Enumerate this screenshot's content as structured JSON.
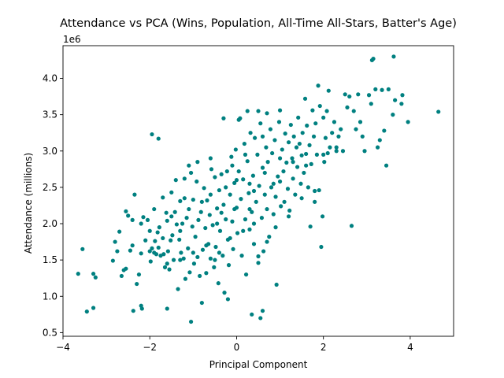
{
  "chart_data": {
    "type": "scatter",
    "title": "Attendance vs PCA (Wins, Population, All-Time All-Stars, Batter's Age)",
    "xlabel": "Principal Component",
    "ylabel": "Attendance (millions)",
    "offset_label": "1e6",
    "xlim": [
      -4.0,
      5.0
    ],
    "ylim": [
      0.45,
      4.45
    ],
    "x_ticks": [
      -4,
      -2,
      0,
      2,
      4
    ],
    "x_tick_labels": [
      "−4",
      "−2",
      "0",
      "2",
      "4"
    ],
    "y_ticks": [
      0.5,
      1.0,
      1.5,
      2.0,
      2.5,
      3.0,
      3.5,
      4.0
    ],
    "y_tick_labels": [
      "0.5",
      "1.0",
      "1.5",
      "2.0",
      "2.5",
      "3.0",
      "3.5",
      "4.0"
    ],
    "grid": false,
    "marker_color": "#008080",
    "points": [
      [
        -3.65,
        1.31
      ],
      [
        -3.55,
        1.65
      ],
      [
        -3.45,
        0.79
      ],
      [
        -3.3,
        0.84
      ],
      [
        -3.3,
        1.31
      ],
      [
        -3.25,
        1.26
      ],
      [
        -2.85,
        1.49
      ],
      [
        -2.75,
        1.62
      ],
      [
        -2.8,
        1.75
      ],
      [
        -2.7,
        1.89
      ],
      [
        -2.65,
        1.28
      ],
      [
        -2.6,
        1.36
      ],
      [
        -2.55,
        1.38
      ],
      [
        -2.55,
        2.17
      ],
      [
        -2.5,
        2.11
      ],
      [
        -2.45,
        1.63
      ],
      [
        -2.4,
        2.05
      ],
      [
        -2.38,
        0.8
      ],
      [
        -2.35,
        2.4
      ],
      [
        -2.3,
        1.17
      ],
      [
        -2.25,
        1.3
      ],
      [
        -2.2,
        1.59
      ],
      [
        -2.18,
        0.83
      ],
      [
        -2.2,
        0.87
      ],
      [
        -2.15,
        2.09
      ],
      [
        -2.1,
        1.77
      ],
      [
        -2.05,
        2.05
      ],
      [
        -2.0,
        1.62
      ],
      [
        -1.98,
        1.48
      ],
      [
        -1.95,
        1.66
      ],
      [
        -1.9,
        2.2
      ],
      [
        -1.88,
        1.76
      ],
      [
        -1.85,
        1.58
      ],
      [
        -1.82,
        1.88
      ],
      [
        -1.8,
        1.67
      ],
      [
        -1.78,
        1.95
      ],
      [
        -1.75,
        1.56
      ],
      [
        -1.7,
        2.36
      ],
      [
        -1.68,
        1.58
      ],
      [
        -1.65,
        1.4
      ],
      [
        -1.62,
        2.15
      ],
      [
        -1.6,
        2.04
      ],
      [
        -1.58,
        1.62
      ],
      [
        -1.55,
        1.37
      ],
      [
        -1.52,
        1.77
      ],
      [
        -1.5,
        2.43
      ],
      [
        -1.48,
        1.84
      ],
      [
        -1.45,
        1.5
      ],
      [
        -1.42,
        2.16
      ],
      [
        -1.4,
        2.6
      ],
      [
        -1.38,
        1.99
      ],
      [
        -1.35,
        1.1
      ],
      [
        -1.32,
        1.78
      ],
      [
        -1.3,
        2.31
      ],
      [
        -1.28,
        1.6
      ],
      [
        -1.25,
        2.0
      ],
      [
        -1.22,
        1.52
      ],
      [
        -1.2,
        2.62
      ],
      [
        -1.18,
        1.24
      ],
      [
        -1.15,
        2.08
      ],
      [
        -1.12,
        1.66
      ],
      [
        -1.1,
        2.8
      ],
      [
        -1.08,
        1.33
      ],
      [
        -1.05,
        2.7
      ],
      [
        -1.02,
        1.96
      ],
      [
        -1.0,
        2.33
      ],
      [
        -0.98,
        1.45
      ],
      [
        -0.95,
        1.82
      ],
      [
        -0.92,
        2.58
      ],
      [
        -0.9,
        1.54
      ],
      [
        -0.88,
        2.05
      ],
      [
        -0.85,
        1.28
      ],
      [
        -0.82,
        2.16
      ],
      [
        -0.8,
        0.91
      ],
      [
        -0.78,
        1.64
      ],
      [
        -0.75,
        2.49
      ],
      [
        -0.72,
        1.94
      ],
      [
        -0.7,
        1.32
      ],
      [
        -0.68,
        2.32
      ],
      [
        -0.65,
        1.72
      ],
      [
        -0.62,
        2.12
      ],
      [
        -0.6,
        1.52
      ],
      [
        -0.58,
        2.75
      ],
      [
        -0.55,
        1.98
      ],
      [
        -0.52,
        1.4
      ],
      [
        -0.5,
        2.64
      ],
      [
        -0.48,
        1.68
      ],
      [
        -0.45,
        2.21
      ],
      [
        -0.42,
        1.18
      ],
      [
        -0.4,
        2.46
      ],
      [
        -0.38,
        1.9
      ],
      [
        -0.35,
        2.68
      ],
      [
        -0.32,
        1.56
      ],
      [
        -0.3,
        2.26
      ],
      [
        -0.28,
        1.05
      ],
      [
        -0.25,
        2.06
      ],
      [
        -0.22,
        2.72
      ],
      [
        -0.2,
        1.78
      ],
      [
        -0.18,
        1.43
      ],
      [
        -0.15,
        2.4
      ],
      [
        -0.12,
        2.92
      ],
      [
        -0.1,
        2.03
      ],
      [
        -0.08,
        1.65
      ],
      [
        -0.05,
        2.56
      ],
      [
        -0.02,
        3.02
      ],
      [
        0.0,
        2.22
      ],
      [
        0.02,
        1.87
      ],
      [
        0.05,
        2.72
      ],
      [
        0.08,
        3.45
      ],
      [
        0.1,
        2.34
      ],
      [
        0.12,
        1.56
      ],
      [
        0.15,
        2.61
      ],
      [
        0.18,
        3.1
      ],
      [
        0.2,
        2.06
      ],
      [
        0.22,
        1.3
      ],
      [
        0.25,
        2.86
      ],
      [
        0.28,
        2.42
      ],
      [
        0.3,
        1.92
      ],
      [
        0.32,
        3.25
      ],
      [
        0.35,
        2.16
      ],
      [
        0.38,
        2.66
      ],
      [
        0.4,
        1.72
      ],
      [
        0.42,
        3.18
      ],
      [
        0.45,
        2.3
      ],
      [
        0.48,
        2.95
      ],
      [
        0.5,
        1.46
      ],
      [
        0.52,
        2.52
      ],
      [
        0.55,
        3.38
      ],
      [
        0.58,
        2.08
      ],
      [
        0.6,
        2.77
      ],
      [
        0.62,
        1.62
      ],
      [
        0.65,
        2.4
      ],
      [
        0.68,
        3.05
      ],
      [
        0.7,
        2.2
      ],
      [
        0.72,
        2.85
      ],
      [
        0.75,
        1.82
      ],
      [
        0.78,
        3.3
      ],
      [
        0.8,
        2.5
      ],
      [
        0.82,
        2.97
      ],
      [
        0.85,
        2.13
      ],
      [
        0.88,
        3.15
      ],
      [
        0.9,
        2.37
      ],
      [
        0.92,
        1.16
      ],
      [
        0.95,
        2.65
      ],
      [
        0.98,
        3.4
      ],
      [
        1.0,
        2.58
      ],
      [
        1.02,
        2.24
      ],
      [
        1.05,
        3.02
      ],
      [
        1.08,
        2.72
      ],
      [
        1.1,
        2.3
      ],
      [
        1.12,
        3.24
      ],
      [
        1.15,
        2.84
      ],
      [
        1.18,
        2.48
      ],
      [
        1.2,
        3.12
      ],
      [
        1.22,
        2.18
      ],
      [
        1.25,
        3.36
      ],
      [
        1.28,
        2.9
      ],
      [
        1.3,
        2.62
      ],
      [
        1.32,
        3.2
      ],
      [
        1.35,
        2.4
      ],
      [
        1.38,
        3.05
      ],
      [
        1.4,
        2.78
      ],
      [
        1.42,
        3.46
      ],
      [
        1.45,
        3.1
      ],
      [
        1.48,
        2.55
      ],
      [
        1.5,
        2.94
      ],
      [
        1.52,
        3.25
      ],
      [
        1.55,
        2.7
      ],
      [
        1.58,
        3.72
      ],
      [
        1.6,
        2.96
      ],
      [
        1.62,
        3.35
      ],
      [
        1.65,
        2.5
      ],
      [
        1.68,
        3.08
      ],
      [
        1.7,
        1.96
      ],
      [
        1.72,
        2.82
      ],
      [
        1.75,
        3.56
      ],
      [
        1.78,
        3.2
      ],
      [
        1.8,
        2.3
      ],
      [
        1.82,
        3.38
      ],
      [
        1.85,
        2.95
      ],
      [
        1.88,
        3.9
      ],
      [
        1.9,
        2.46
      ],
      [
        1.92,
        3.62
      ],
      [
        1.95,
        1.68
      ],
      [
        1.98,
        2.1
      ],
      [
        2.0,
        3.46
      ],
      [
        2.02,
        2.85
      ],
      [
        2.05,
        3.18
      ],
      [
        2.08,
        3.55
      ],
      [
        2.1,
        2.97
      ],
      [
        2.12,
        3.83
      ],
      [
        2.15,
        3.05
      ],
      [
        2.2,
        3.25
      ],
      [
        2.25,
        3.4
      ],
      [
        2.3,
        3.05
      ],
      [
        2.35,
        3.2
      ],
      [
        2.4,
        3.3
      ],
      [
        2.45,
        3.0
      ],
      [
        2.5,
        3.78
      ],
      [
        2.55,
        3.6
      ],
      [
        2.6,
        3.75
      ],
      [
        2.65,
        1.97
      ],
      [
        2.7,
        3.55
      ],
      [
        2.75,
        3.3
      ],
      [
        2.8,
        3.78
      ],
      [
        2.85,
        3.4
      ],
      [
        2.9,
        3.2
      ],
      [
        2.95,
        3.0
      ],
      [
        3.05,
        3.77
      ],
      [
        3.1,
        3.65
      ],
      [
        3.12,
        4.25
      ],
      [
        3.15,
        4.27
      ],
      [
        3.2,
        3.85
      ],
      [
        3.25,
        3.05
      ],
      [
        3.3,
        3.15
      ],
      [
        3.35,
        3.84
      ],
      [
        3.4,
        3.28
      ],
      [
        3.45,
        2.8
      ],
      [
        3.5,
        3.85
      ],
      [
        3.6,
        3.5
      ],
      [
        3.62,
        4.3
      ],
      [
        3.65,
        3.7
      ],
      [
        3.8,
        3.65
      ],
      [
        3.82,
        3.77
      ],
      [
        3.95,
        3.4
      ],
      [
        4.65,
        3.54
      ],
      [
        -1.95,
        3.23
      ],
      [
        -1.8,
        3.17
      ],
      [
        -1.05,
        0.65
      ],
      [
        0.35,
        0.75
      ],
      [
        0.55,
        0.7
      ],
      [
        0.6,
        0.8
      ],
      [
        -0.3,
        3.45
      ],
      [
        0.05,
        3.43
      ],
      [
        0.25,
        3.55
      ],
      [
        0.5,
        3.55
      ],
      [
        0.7,
        3.52
      ],
      [
        1.0,
        3.56
      ],
      [
        -1.6,
        0.83
      ],
      [
        -0.2,
        0.96
      ],
      [
        -0.5,
        1.5
      ],
      [
        -0.15,
        1.8
      ],
      [
        0.4,
        2.0
      ],
      [
        0.15,
        1.9
      ],
      [
        -0.35,
        2.15
      ],
      [
        0.3,
        2.55
      ],
      [
        0.65,
        2.7
      ],
      [
        0.85,
        2.55
      ],
      [
        -0.6,
        2.9
      ],
      [
        -0.9,
        2.85
      ],
      [
        -1.2,
        2.35
      ],
      [
        -1.5,
        2.1
      ],
      [
        -2.2,
        2.0
      ],
      [
        -2.4,
        1.7
      ],
      [
        -2.0,
        1.9
      ],
      [
        -1.7,
        1.8
      ],
      [
        -1.3,
        1.9
      ],
      [
        -0.8,
        2.3
      ],
      [
        -0.6,
        2.4
      ],
      [
        -0.1,
        2.8
      ],
      [
        0.2,
        2.95
      ],
      [
        0.6,
        3.2
      ],
      [
        1.0,
        2.9
      ],
      [
        1.3,
        2.85
      ],
      [
        1.6,
        2.8
      ],
      [
        2.0,
        2.95
      ],
      [
        2.3,
        3.0
      ],
      [
        -0.4,
        1.6
      ],
      [
        -0.7,
        1.7
      ],
      [
        -1.0,
        1.6
      ],
      [
        -1.3,
        1.5
      ],
      [
        -1.6,
        1.45
      ],
      [
        -1.9,
        1.6
      ],
      [
        0.9,
        1.95
      ],
      [
        0.7,
        1.75
      ],
      [
        0.5,
        1.55
      ],
      [
        1.2,
        2.1
      ],
      [
        1.5,
        2.35
      ],
      [
        1.8,
        2.45
      ],
      [
        -0.25,
        2.5
      ],
      [
        0.0,
        2.6
      ],
      [
        0.4,
        2.45
      ],
      [
        -0.05,
        2.2
      ],
      [
        0.3,
        2.2
      ],
      [
        -0.45,
        2.0
      ],
      [
        -1.1,
        2.2
      ]
    ]
  }
}
